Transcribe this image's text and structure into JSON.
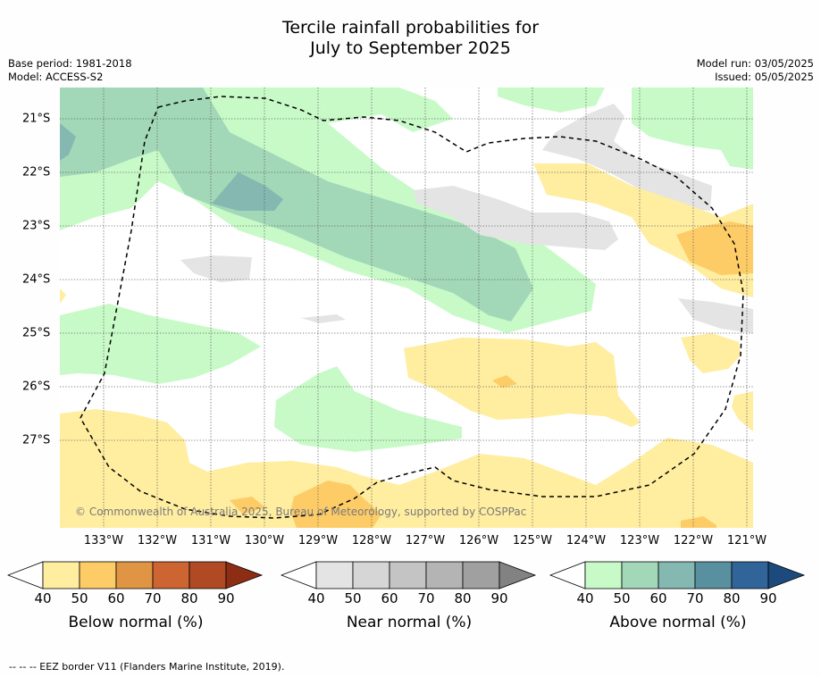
{
  "title_line1": "Tercile rainfall probabilities for",
  "title_line2": "July to September 2025",
  "base_period": "Base period: 1981-2018",
  "model": "Model: ACCESS-S2",
  "model_run": "Model run: 03/05/2025",
  "issued": "Issued: 05/05/2025",
  "copyright": "© Commonwealth of Australia 2025, Bureau of Meteorology, supported by COSPPac",
  "longitude_labels": [
    "133°W",
    "132°W",
    "131°W",
    "130°W",
    "129°W",
    "128°W",
    "127°W",
    "126°W",
    "125°W",
    "124°W",
    "123°W",
    "122°W",
    "121°W"
  ],
  "latitude_labels": [
    "21°S",
    "22°S",
    "23°S",
    "24°S",
    "25°S",
    "26°S",
    "27°S"
  ],
  "colorbars": [
    {
      "title": "Below normal (%)",
      "ticks": [
        "40",
        "50",
        "60",
        "70",
        "80",
        "90"
      ],
      "colors": [
        "#ffffff",
        "#ffeda0",
        "#fdcc67",
        "#e09545",
        "#cd6532",
        "#b04a24",
        "#8c2d14"
      ]
    },
    {
      "title": "Near normal (%)",
      "ticks": [
        "40",
        "50",
        "60",
        "70",
        "80",
        "90"
      ],
      "colors": [
        "#ffffff",
        "#e4e4e4",
        "#d6d6d6",
        "#c4c4c4",
        "#b4b4b4",
        "#a0a0a0",
        "#828282"
      ]
    },
    {
      "title": "Above normal (%)",
      "ticks": [
        "40",
        "50",
        "60",
        "70",
        "80",
        "90"
      ],
      "colors": [
        "#ffffff",
        "#c8fac8",
        "#a2d8b8",
        "#84b8b0",
        "#5890a0",
        "#316498",
        "#1c4a7c"
      ]
    }
  ],
  "footer": "--  --  -- EEZ border V11 (Flanders Marine Institute, 2019)."
}
